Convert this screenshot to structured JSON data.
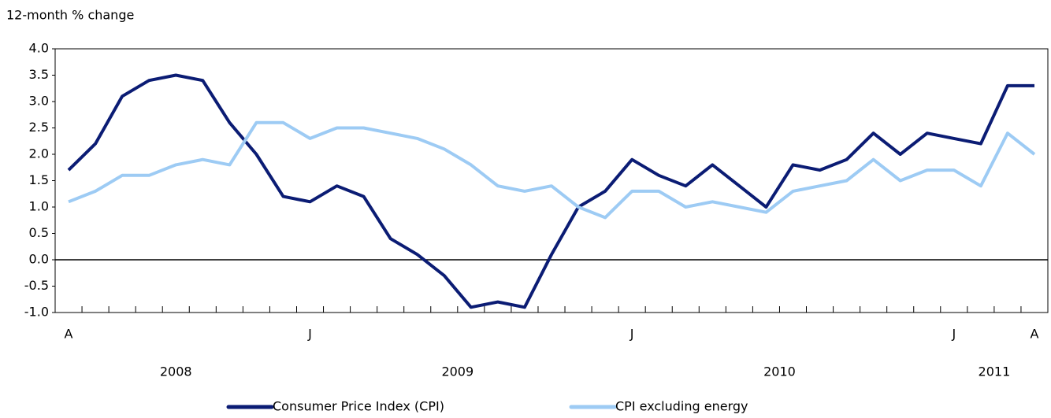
{
  "chart_data": {
    "type": "line",
    "y_label": "12-month % change",
    "categories": [
      "A",
      null,
      null,
      null,
      null,
      null,
      null,
      null,
      null,
      "J",
      null,
      null,
      null,
      null,
      null,
      null,
      null,
      null,
      null,
      null,
      null,
      "J",
      null,
      null,
      null,
      null,
      null,
      null,
      null,
      null,
      null,
      null,
      null,
      "J",
      null,
      null,
      "A"
    ],
    "year_labels": [
      "2008",
      "2009",
      "2010",
      "2011"
    ],
    "series": [
      {
        "name": "Consumer Price Index (CPI)",
        "color": "#0b1c74",
        "values": [
          1.7,
          2.2,
          3.1,
          3.4,
          3.5,
          3.4,
          2.6,
          2.0,
          1.2,
          1.1,
          1.4,
          1.2,
          0.4,
          0.1,
          -0.3,
          -0.9,
          -0.8,
          -0.9,
          0.1,
          1.0,
          1.3,
          1.9,
          1.6,
          1.4,
          1.8,
          1.4,
          1.0,
          1.8,
          1.7,
          1.9,
          2.4,
          2.0,
          2.4,
          2.3,
          2.2,
          3.3,
          3.3
        ]
      },
      {
        "name": "CPI excluding energy",
        "color": "#9dcbf4",
        "values": [
          1.1,
          1.3,
          1.6,
          1.6,
          1.8,
          1.9,
          1.8,
          2.6,
          2.6,
          2.3,
          2.5,
          2.5,
          2.4,
          2.3,
          2.1,
          1.8,
          1.4,
          1.3,
          1.4,
          1.0,
          0.8,
          1.3,
          1.3,
          1.0,
          1.1,
          1.0,
          0.9,
          1.3,
          1.4,
          1.5,
          1.9,
          1.5,
          1.7,
          1.7,
          1.4,
          2.4,
          2.0
        ]
      }
    ],
    "ylim": [
      -1.0,
      4.0
    ],
    "yticks": [
      {
        "value": -1,
        "label": "-1.0"
      },
      {
        "value": -0.5,
        "label": "-0.5"
      },
      {
        "value": 0,
        "label": "0.0"
      },
      {
        "value": 0.5,
        "label": "0.5"
      },
      {
        "value": 1,
        "label": "1.0"
      },
      {
        "value": 1.5,
        "label": "1.5"
      },
      {
        "value": 2,
        "label": "2.0"
      },
      {
        "value": 2.5,
        "label": "2.5"
      },
      {
        "value": 3,
        "label": "3.0"
      },
      {
        "value": 3.5,
        "label": "3.5"
      },
      {
        "value": 4,
        "label": "4.0"
      }
    ],
    "grid": false,
    "legend": "bottom"
  }
}
